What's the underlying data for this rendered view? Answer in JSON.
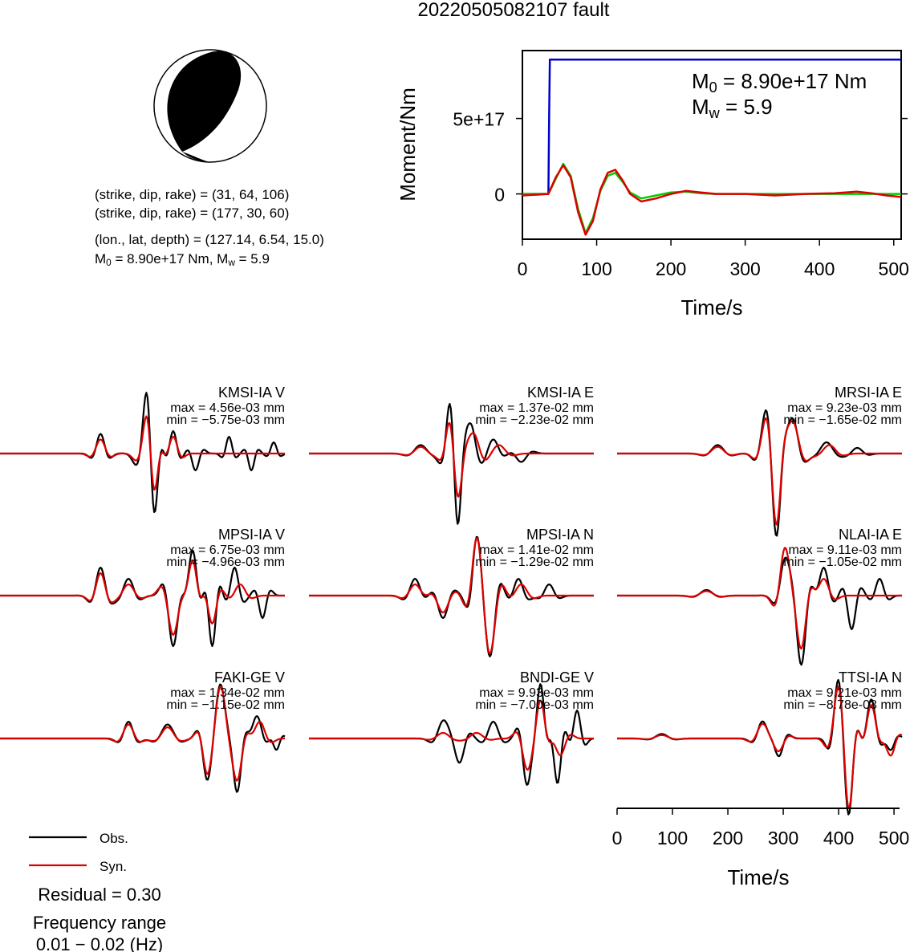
{
  "title": "20220505082107 fault",
  "beachball": {
    "planes": [
      "(strike, dip, rake) = (31, 64, 106)",
      "(strike, dip, rake) = (177, 30, 60)"
    ],
    "location": "(lon., lat, depth) = (127.14, 6.54, 15.0)",
    "moment_line_a": "M",
    "moment_line_sub": "0",
    "moment_line_b": " = 8.90e+17 Nm, M",
    "moment_line_sub2": "w",
    "moment_line_c": " = 5.9"
  },
  "chart_data": [
    {
      "type": "line",
      "name": "moment-rate",
      "xlabel": "Time/s",
      "ylabel": "Moment/Nm",
      "xlim": [
        0,
        510
      ],
      "ylim": [
        -3e+17,
        9.5e+17
      ],
      "xticks": [
        0,
        100,
        200,
        300,
        400,
        500
      ],
      "yticks": [
        {
          "value": 0,
          "label": "0"
        },
        {
          "value": 5e+17,
          "label": "5e+17"
        }
      ],
      "annotation_m0": {
        "a": "M",
        "sub": "0",
        "b": " = 8.90e+17 Nm"
      },
      "annotation_mw": {
        "a": "M",
        "sub": "w",
        "b": " = 5.9"
      },
      "series": [
        {
          "color": "#0000cc",
          "x": [
            0,
            35,
            36,
            37,
            38,
            510
          ],
          "y": [
            0,
            0,
            5e+17,
            8.9e+17,
            8.9e+17,
            8.9e+17
          ]
        },
        {
          "color": "#00cc00",
          "x": [
            0,
            20,
            35,
            45,
            55,
            65,
            75,
            85,
            95,
            105,
            115,
            125,
            135,
            145,
            160,
            180,
            200,
            220,
            240,
            260,
            300,
            340,
            380,
            420,
            460,
            510
          ],
          "y": [
            0,
            0,
            0,
            1e+17,
            2e+17,
            1.2e+17,
            -1e+17,
            -2.6e+17,
            -1.6e+17,
            2e+16,
            1.2e+17,
            1.4e+17,
            8e+16,
            1e+16,
            -3e+16,
            -1e+16,
            1e+16,
            1.5e+16,
            5000000000000000.0,
            0,
            0,
            0,
            0,
            0,
            0,
            0
          ]
        },
        {
          "color": "#dd0000",
          "x": [
            0,
            20,
            35,
            45,
            55,
            65,
            75,
            85,
            95,
            105,
            115,
            125,
            135,
            145,
            160,
            180,
            200,
            220,
            240,
            260,
            300,
            340,
            380,
            420,
            450,
            470,
            490,
            510
          ],
          "y": [
            -1e+16,
            -5000000000000000.0,
            0,
            1.1e+17,
            1.9e+17,
            1.1e+17,
            -1.2e+17,
            -2.7e+17,
            -1.8e+17,
            3e+16,
            1.4e+17,
            1.6e+17,
            9e+16,
            0,
            -5e+16,
            -3e+16,
            0,
            2e+16,
            1e+16,
            0,
            0,
            -1e+16,
            0,
            5000000000000000.0,
            1.5e+16,
            5000000000000000.0,
            -1e+16,
            -2e+16
          ]
        }
      ]
    },
    {
      "type": "line",
      "name": "waveforms",
      "xlabel": "Time/s",
      "xlim": [
        0,
        510
      ],
      "xticks": [
        0,
        100,
        200,
        300,
        400,
        500
      ],
      "legend": [
        "Obs.",
        "Syn."
      ],
      "residual": "Residual = 0.30",
      "freq_title": "Frequency range",
      "freq_range": "0.01 − 0.02 (Hz)",
      "stations": [
        {
          "name": "KMSI-IA V",
          "max": "max = 4.56e-03 mm",
          "min": "min = −5.75e-03 mm",
          "obs": [
            {
              "t": 180,
              "a": 0.35,
              "w": 16
            },
            {
              "t": 265,
              "a": 0.9,
              "w": 20
            },
            {
              "t": 275,
              "a": -1.3,
              "w": 14
            },
            {
              "t": 310,
              "a": 0.4,
              "w": 14
            },
            {
              "t": 350,
              "a": -0.3,
              "w": 14
            },
            {
              "t": 410,
              "a": 0.3,
              "w": 12
            },
            {
              "t": 450,
              "a": -0.3,
              "w": 12
            },
            {
              "t": 490,
              "a": 0.2,
              "w": 12
            }
          ],
          "syn": [
            {
              "t": 180,
              "a": 0.25,
              "w": 18
            },
            {
              "t": 265,
              "a": 0.55,
              "w": 20
            },
            {
              "t": 275,
              "a": -0.8,
              "w": 14
            },
            {
              "t": 310,
              "a": 0.3,
              "w": 16
            }
          ]
        },
        {
          "name": "KMSI-IA E",
          "max": "max = 1.37e-02 mm",
          "min": "min = −2.23e-02 mm",
          "obs": [
            {
              "t": 200,
              "a": 0.15,
              "w": 24
            },
            {
              "t": 255,
              "a": 0.7,
              "w": 18
            },
            {
              "t": 265,
              "a": -1.3,
              "w": 14
            },
            {
              "t": 290,
              "a": 0.5,
              "w": 18
            },
            {
              "t": 330,
              "a": 0.25,
              "w": 20
            },
            {
              "t": 380,
              "a": -0.15,
              "w": 20
            }
          ],
          "syn": [
            {
              "t": 200,
              "a": 0.12,
              "w": 24
            },
            {
              "t": 255,
              "a": 0.5,
              "w": 18
            },
            {
              "t": 265,
              "a": -0.8,
              "w": 16
            },
            {
              "t": 295,
              "a": 0.35,
              "w": 20
            },
            {
              "t": 340,
              "a": 0.15,
              "w": 24
            }
          ]
        },
        {
          "name": "MRSI-IA E",
          "max": "max = 9.23e-03 mm",
          "min": "min = −1.65e-02 mm",
          "obs": [
            {
              "t": 180,
              "a": 0.15,
              "w": 24
            },
            {
              "t": 265,
              "a": 0.5,
              "w": 18
            },
            {
              "t": 285,
              "a": -1.3,
              "w": 16
            },
            {
              "t": 315,
              "a": 0.6,
              "w": 20
            },
            {
              "t": 375,
              "a": 0.2,
              "w": 24
            },
            {
              "t": 430,
              "a": 0.1,
              "w": 20
            }
          ],
          "syn": [
            {
              "t": 180,
              "a": 0.12,
              "w": 24
            },
            {
              "t": 265,
              "a": 0.4,
              "w": 18
            },
            {
              "t": 285,
              "a": -1.1,
              "w": 16
            },
            {
              "t": 315,
              "a": 0.55,
              "w": 22
            },
            {
              "t": 380,
              "a": 0.15,
              "w": 24
            }
          ]
        },
        {
          "name": "MPSI-IA V",
          "max": "max = 6.75e-03 mm",
          "min": "min = −4.96e-03 mm",
          "obs": [
            {
              "t": 180,
              "a": 0.5,
              "w": 18
            },
            {
              "t": 230,
              "a": 0.3,
              "w": 20
            },
            {
              "t": 310,
              "a": -0.9,
              "w": 18
            },
            {
              "t": 345,
              "a": 0.8,
              "w": 16
            },
            {
              "t": 380,
              "a": -0.9,
              "w": 14
            },
            {
              "t": 420,
              "a": 0.5,
              "w": 16
            },
            {
              "t": 470,
              "a": -0.4,
              "w": 14
            }
          ],
          "syn": [
            {
              "t": 180,
              "a": 0.4,
              "w": 18
            },
            {
              "t": 230,
              "a": 0.2,
              "w": 22
            },
            {
              "t": 310,
              "a": -0.7,
              "w": 20
            },
            {
              "t": 345,
              "a": 0.6,
              "w": 16
            },
            {
              "t": 380,
              "a": -0.5,
              "w": 16
            },
            {
              "t": 430,
              "a": 0.2,
              "w": 20
            }
          ]
        },
        {
          "name": "MPSI-IA N",
          "max": "max = 1.41e-02 mm",
          "min": "min = −1.29e-02 mm",
          "obs": [
            {
              "t": 190,
              "a": 0.3,
              "w": 20
            },
            {
              "t": 240,
              "a": -0.4,
              "w": 20
            },
            {
              "t": 300,
              "a": 0.9,
              "w": 16
            },
            {
              "t": 325,
              "a": -1.0,
              "w": 18
            },
            {
              "t": 375,
              "a": 0.3,
              "w": 18
            },
            {
              "t": 430,
              "a": 0.2,
              "w": 18
            }
          ],
          "syn": [
            {
              "t": 190,
              "a": 0.2,
              "w": 22
            },
            {
              "t": 240,
              "a": -0.3,
              "w": 22
            },
            {
              "t": 300,
              "a": 0.85,
              "w": 18
            },
            {
              "t": 325,
              "a": -0.9,
              "w": 20
            },
            {
              "t": 380,
              "a": 0.2,
              "w": 22
            }
          ]
        },
        {
          "name": "NLAI-IA E",
          "max": "max = 9.11e-03 mm",
          "min": "min = −1.05e-02 mm",
          "obs": [
            {
              "t": 160,
              "a": 0.1,
              "w": 24
            },
            {
              "t": 300,
              "a": 0.6,
              "w": 18
            },
            {
              "t": 330,
              "a": -1.2,
              "w": 18
            },
            {
              "t": 370,
              "a": 0.5,
              "w": 18
            },
            {
              "t": 420,
              "a": -0.6,
              "w": 16
            },
            {
              "t": 470,
              "a": 0.3,
              "w": 16
            }
          ],
          "syn": [
            {
              "t": 160,
              "a": 0.08,
              "w": 26
            },
            {
              "t": 300,
              "a": 0.8,
              "w": 18
            },
            {
              "t": 330,
              "a": -0.9,
              "w": 18
            },
            {
              "t": 370,
              "a": 0.3,
              "w": 20
            }
          ]
        },
        {
          "name": "FAKI-GE V",
          "max": "max = 1.34e-02 mm",
          "min": "min = −1.15e-02 mm",
          "obs": [
            {
              "t": 230,
              "a": 0.3,
              "w": 18
            },
            {
              "t": 300,
              "a": 0.25,
              "w": 24
            },
            {
              "t": 370,
              "a": -0.6,
              "w": 16
            },
            {
              "t": 395,
              "a": 0.9,
              "w": 18
            },
            {
              "t": 425,
              "a": -0.9,
              "w": 16
            },
            {
              "t": 460,
              "a": 0.4,
              "w": 18
            },
            {
              "t": 495,
              "a": -0.2,
              "w": 12
            }
          ],
          "syn": [
            {
              "t": 230,
              "a": 0.25,
              "w": 20
            },
            {
              "t": 300,
              "a": 0.2,
              "w": 24
            },
            {
              "t": 370,
              "a": -0.5,
              "w": 16
            },
            {
              "t": 395,
              "a": 0.85,
              "w": 18
            },
            {
              "t": 425,
              "a": -0.7,
              "w": 18
            },
            {
              "t": 465,
              "a": 0.3,
              "w": 20
            }
          ]
        },
        {
          "name": "BNDI-GE V",
          "max": "max = 9.93e-03 mm",
          "min": "min = −7.00e-03 mm",
          "obs": [
            {
              "t": 240,
              "a": 0.3,
              "w": 20
            },
            {
              "t": 270,
              "a": -0.4,
              "w": 18
            },
            {
              "t": 330,
              "a": 0.3,
              "w": 20
            },
            {
              "t": 390,
              "a": -0.8,
              "w": 16
            },
            {
              "t": 415,
              "a": 0.9,
              "w": 14
            },
            {
              "t": 445,
              "a": -0.8,
              "w": 14
            },
            {
              "t": 480,
              "a": 0.5,
              "w": 14
            }
          ],
          "syn": [
            {
              "t": 240,
              "a": 0.1,
              "w": 24
            },
            {
              "t": 300,
              "a": 0.1,
              "w": 24
            },
            {
              "t": 390,
              "a": -0.5,
              "w": 18
            },
            {
              "t": 415,
              "a": 0.6,
              "w": 16
            },
            {
              "t": 450,
              "a": -0.3,
              "w": 18
            }
          ]
        },
        {
          "name": "TTSI-IA N",
          "max": "max = 9.21e-03 mm",
          "min": "min = −8.78e-03 mm",
          "obs": [
            {
              "t": 80,
              "a": 0.08,
              "w": 24
            },
            {
              "t": 260,
              "a": 0.3,
              "w": 18
            },
            {
              "t": 290,
              "a": -0.3,
              "w": 16
            },
            {
              "t": 395,
              "a": 0.8,
              "w": 16
            },
            {
              "t": 415,
              "a": -1.2,
              "w": 16
            },
            {
              "t": 455,
              "a": 0.7,
              "w": 18
            },
            {
              "t": 490,
              "a": -0.2,
              "w": 14
            }
          ],
          "syn": [
            {
              "t": 80,
              "a": 0.06,
              "w": 26
            },
            {
              "t": 260,
              "a": 0.25,
              "w": 20
            },
            {
              "t": 290,
              "a": -0.2,
              "w": 18
            },
            {
              "t": 395,
              "a": 0.7,
              "w": 18
            },
            {
              "t": 415,
              "a": -1.1,
              "w": 16
            },
            {
              "t": 455,
              "a": 0.6,
              "w": 18
            },
            {
              "t": 490,
              "a": -0.3,
              "w": 16
            }
          ]
        }
      ]
    }
  ]
}
